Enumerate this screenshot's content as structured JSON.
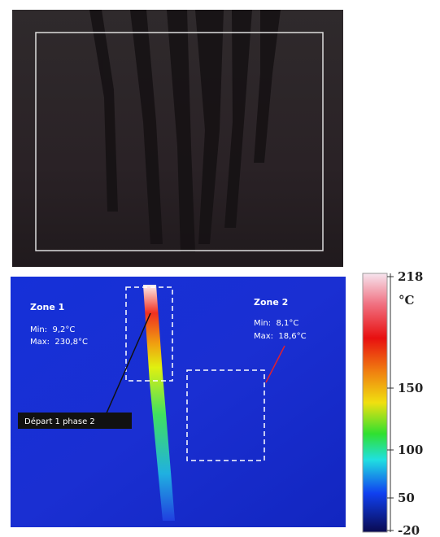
{
  "thermal_image": {
    "zones": [
      {
        "title": "Zone 1",
        "min": "Min:  9,2°C",
        "max": "Max:  230,8°C"
      },
      {
        "title": "Zone 2",
        "min": "Min:  8,1°C",
        "max": "Max:  18,6°C"
      }
    ],
    "annotation": "Départ 1 phase 2"
  },
  "color_scale": {
    "max": "218",
    "unit": "°C",
    "ticks": [
      "150",
      "100",
      "50"
    ],
    "min": "-20"
  }
}
